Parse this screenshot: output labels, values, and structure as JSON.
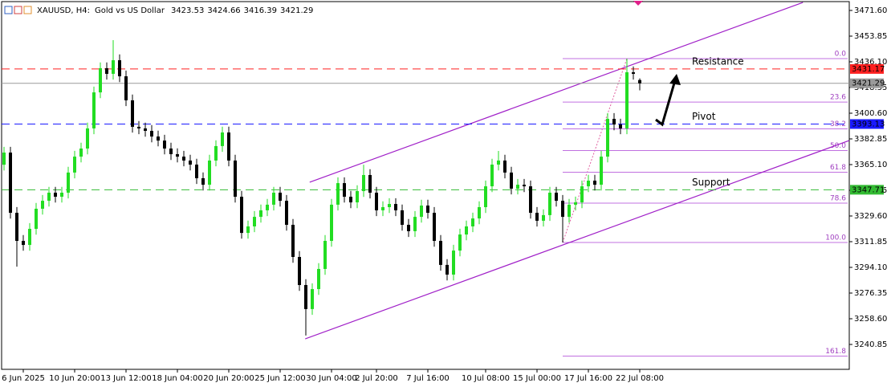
{
  "chart_data": {
    "type": "candlestick",
    "symbol": "XAUUSD, H4:",
    "description": "Gold vs US Dollar",
    "categories": [
      null,
      null,
      null,
      "6 Jun 2025",
      null,
      null,
      null,
      null,
      null,
      null,
      null,
      "10 Jun 20:00",
      null,
      null,
      null,
      null,
      null,
      null,
      null,
      "13 Jun 12:00",
      null,
      null,
      null,
      null,
      null,
      null,
      null,
      "18 Jun 04:00",
      null,
      null,
      null,
      null,
      null,
      null,
      null,
      "20 Jun 20:00",
      null,
      null,
      null,
      null,
      null,
      null,
      null,
      "25 Jun 12:00",
      null,
      null,
      null,
      null,
      null,
      null,
      null,
      "30 Jun 04:00",
      null,
      null,
      null,
      null,
      null,
      null,
      "2 Jul 20:00",
      null,
      null,
      null,
      null,
      null,
      null,
      null,
      "7 Jul 16:00",
      null,
      null,
      null,
      null,
      null,
      null,
      null,
      null,
      "10 Jul 08:00",
      null,
      null,
      null,
      null,
      null,
      null,
      null,
      "15 Jul 00:00",
      null,
      null,
      null,
      null,
      null,
      null,
      null,
      "17 Jul 16:00",
      null,
      null,
      null,
      null,
      null,
      null,
      null,
      "22 Jul 08:00"
    ],
    "open": [
      3365.0,
      3373.4,
      3331.8,
      3312.4,
      3309.6,
      3320.7,
      3334.6,
      3340.1,
      3345.7,
      3342.9,
      3345.7,
      3359.6,
      3370.6,
      3376.2,
      3390.1,
      3415.0,
      3431.7,
      3427.8,
      3437.2,
      3426.1,
      3409.5,
      3391.2,
      3390.1,
      3388.4,
      3384.5,
      3381.7,
      3376.2,
      3372.3,
      3370.6,
      3367.9,
      3365.1,
      3355.7,
      3351.2,
      3367.9,
      3377.9,
      3387.3,
      3367.9,
      3342.9,
      3317.9,
      3322.4,
      3329.0,
      3333.5,
      3337.4,
      3345.7,
      3340.1,
      3323.5,
      3301.3,
      3281.9,
      3265.3,
      3279.1,
      3293.0,
      3312.4,
      3337.4,
      3352.3,
      3342.9,
      3339.0,
      3346.8,
      3357.9,
      3345.7,
      3333.5,
      3335.7,
      3337.9,
      3333.5,
      3323.5,
      3319.1,
      3329.0,
      3336.8,
      3331.8,
      3312.4,
      3295.8,
      3289.1,
      3305.7,
      3316.8,
      3322.4,
      3327.9,
      3335.7,
      3350.1,
      3365.1,
      3367.9,
      3359.6,
      3348.5,
      3351.2,
      3350.1,
      3331.8,
      3326.3,
      3330.2,
      3345.7,
      3340.1,
      3329.0,
      3337.4,
      3339.0,
      3350.1,
      3354.0,
      3351.2,
      3370.6,
      3396.7,
      3392.8,
      3390.1,
      3428.9,
      3423.53
    ],
    "high": [
      3377.4,
      3377.4,
      3335.8,
      3316.4,
      3324.7,
      3338.6,
      3344.1,
      3349.7,
      3349.7,
      3349.7,
      3363.6,
      3374.6,
      3380.2,
      3394.1,
      3419.0,
      3435.7,
      3435.7,
      3451.1,
      3441.2,
      3430.1,
      3413.5,
      3395.2,
      3394.1,
      3392.4,
      3388.5,
      3385.7,
      3380.2,
      3376.3,
      3374.6,
      3371.9,
      3369.1,
      3359.7,
      3371.9,
      3381.9,
      3391.3,
      3391.3,
      3371.9,
      3346.9,
      3326.4,
      3333.0,
      3337.5,
      3341.4,
      3349.7,
      3349.7,
      3344.1,
      3327.5,
      3305.3,
      3285.9,
      3283.1,
      3297.0,
      3316.4,
      3341.4,
      3356.3,
      3356.3,
      3346.9,
      3350.8,
      3365.0,
      3361.9,
      3349.7,
      3339.7,
      3341.9,
      3341.9,
      3337.5,
      3327.5,
      3333.0,
      3340.8,
      3340.8,
      3335.8,
      3316.4,
      3299.8,
      3309.7,
      3320.8,
      3326.4,
      3331.9,
      3339.7,
      3354.1,
      3369.1,
      3374.5,
      3371.9,
      3363.6,
      3355.2,
      3355.2,
      3354.1,
      3335.8,
      3334.2,
      3349.7,
      3349.7,
      3344.1,
      3341.4,
      3343.0,
      3354.1,
      3358.0,
      3358.0,
      3374.6,
      3400.7,
      3400.7,
      3396.8,
      3438.3,
      3432.9,
      3424.66
    ],
    "low": [
      3361.0,
      3327.8,
      3294.6,
      3305.6,
      3305.6,
      3316.7,
      3330.6,
      3336.1,
      3338.9,
      3338.9,
      3341.7,
      3355.6,
      3366.6,
      3372.2,
      3386.1,
      3411.0,
      3423.8,
      3423.8,
      3422.1,
      3405.5,
      3387.2,
      3386.1,
      3384.4,
      3380.5,
      3377.7,
      3372.2,
      3368.3,
      3366.6,
      3363.9,
      3361.1,
      3351.7,
      3347.2,
      3347.2,
      3363.9,
      3373.9,
      3363.9,
      3338.9,
      3313.9,
      3313.9,
      3318.4,
      3325.0,
      3329.5,
      3333.4,
      3336.1,
      3319.5,
      3297.3,
      3277.9,
      3247.0,
      3261.3,
      3275.1,
      3289.0,
      3308.4,
      3333.4,
      3338.9,
      3335.0,
      3335.0,
      3342.8,
      3341.7,
      3329.5,
      3329.5,
      3331.7,
      3329.5,
      3319.5,
      3315.1,
      3315.1,
      3325.0,
      3327.8,
      3308.4,
      3291.8,
      3285.1,
      3285.1,
      3301.7,
      3312.8,
      3318.4,
      3323.9,
      3331.7,
      3346.1,
      3361.1,
      3355.6,
      3344.5,
      3344.5,
      3346.1,
      3327.8,
      3322.3,
      3322.3,
      3326.2,
      3336.1,
      3311.3,
      3325.0,
      3333.4,
      3335.0,
      3346.1,
      3347.2,
      3347.2,
      3366.6,
      3388.8,
      3386.1,
      3386.1,
      3423.8,
      3416.39
    ],
    "close": [
      3373.4,
      3331.8,
      3312.4,
      3309.6,
      3320.7,
      3334.6,
      3340.1,
      3345.7,
      3342.9,
      3345.7,
      3359.6,
      3370.6,
      3376.2,
      3390.1,
      3415.0,
      3431.7,
      3427.8,
      3437.2,
      3426.1,
      3409.5,
      3391.2,
      3390.1,
      3388.4,
      3384.5,
      3381.7,
      3376.2,
      3372.3,
      3370.6,
      3367.9,
      3365.1,
      3355.7,
      3351.2,
      3367.9,
      3377.9,
      3387.3,
      3367.9,
      3342.9,
      3317.9,
      3322.4,
      3329.0,
      3333.5,
      3337.4,
      3345.7,
      3340.1,
      3323.5,
      3301.3,
      3281.9,
      3265.3,
      3279.1,
      3293.0,
      3312.4,
      3337.4,
      3352.3,
      3342.9,
      3339.0,
      3346.8,
      3357.9,
      3345.7,
      3333.5,
      3335.7,
      3337.9,
      3333.5,
      3323.5,
      3319.1,
      3329.0,
      3336.8,
      3331.8,
      3312.4,
      3295.8,
      3289.1,
      3305.7,
      3316.8,
      3322.4,
      3327.9,
      3335.7,
      3350.1,
      3365.1,
      3367.9,
      3359.6,
      3348.5,
      3351.2,
      3350.1,
      3331.8,
      3326.3,
      3330.2,
      3345.7,
      3340.1,
      3329.0,
      3337.4,
      3339.0,
      3350.1,
      3354.0,
      3351.2,
      3370.6,
      3396.7,
      3392.8,
      3390.1,
      3428.9,
      3427.8,
      3421.29
    ],
    "up_color": "#22dd22",
    "down_color": "#000000",
    "ylim": [
      3223.65,
      3478.81
    ],
    "yticks": [
      {
        "value": 3471.6,
        "label": "3471.60"
      },
      {
        "value": 3453.85,
        "label": "3453.85"
      },
      {
        "value": 3436.1,
        "label": "3436.10"
      },
      {
        "value": 3418.35,
        "label": "3418.35"
      },
      {
        "value": 3400.6,
        "label": "3400.60"
      },
      {
        "value": 3382.85,
        "label": "3382.85"
      },
      {
        "value": 3365.1,
        "label": "3365.10"
      },
      {
        "value": 3347.35,
        "label": "3347.35"
      },
      {
        "value": 3329.6,
        "label": "3329.60"
      },
      {
        "value": 3311.85,
        "label": "3311.85"
      },
      {
        "value": 3294.1,
        "label": "3294.10"
      },
      {
        "value": 3276.35,
        "label": "3276.35"
      },
      {
        "value": 3258.6,
        "label": "3258.60"
      },
      {
        "value": 3240.85,
        "label": "3240.85"
      }
    ],
    "price_line_color": "#9a9a9a",
    "levels": [
      {
        "name": "Resistance",
        "value": 3431.17,
        "color": "#ff2020"
      },
      {
        "name": "Pivot",
        "value": 3393.13,
        "color": "#1a1aff"
      },
      {
        "name": "Support",
        "value": 3347.71,
        "color": "#33bb33"
      }
    ],
    "fibonacci": {
      "start_index": 87,
      "end_index": 97,
      "high": 3438.3,
      "low": 3311.3,
      "color": "#c070e0",
      "levels": [
        {
          "value": 0,
          "label": "0.0"
        },
        {
          "value": 23.6,
          "label": "23.6"
        },
        {
          "value": 38.2,
          "label": "38.2"
        },
        {
          "value": 50,
          "label": "50.0"
        },
        {
          "value": 61.8,
          "label": "61.8"
        },
        {
          "value": 78.6,
          "label": "78.6"
        },
        {
          "value": 100,
          "label": "100.0"
        },
        {
          "value": 161.8,
          "label": "161.8"
        }
      ]
    },
    "channel": {
      "color": "#a020c8",
      "upper": {
        "x": [
          47.6,
          124.4
        ],
        "y": [
          3352.9,
          3477.1
        ]
      },
      "lower": {
        "x": [
          46.9,
          131.6
        ],
        "y": [
          3244.7,
          3381.7
        ]
      }
    }
  }
}
